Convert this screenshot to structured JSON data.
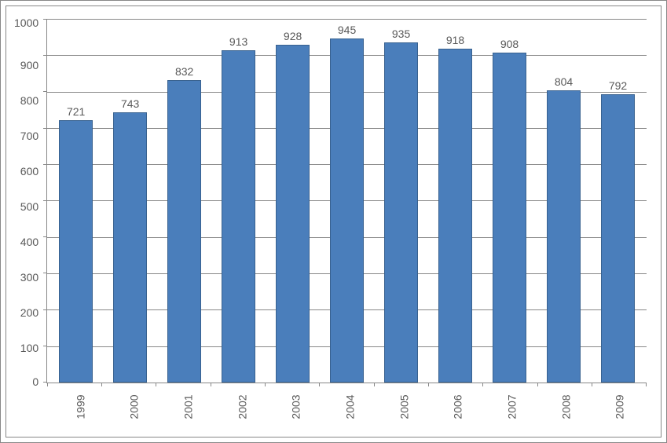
{
  "chart": {
    "type": "bar",
    "categories": [
      "1999",
      "2000",
      "2001",
      "2002",
      "2003",
      "2004",
      "2005",
      "2006",
      "2007",
      "2008",
      "2009"
    ],
    "values": [
      721,
      743,
      832,
      913,
      928,
      945,
      935,
      918,
      908,
      804,
      792
    ],
    "ylim": [
      0,
      1000
    ],
    "ytick_step": 100,
    "yticks": [
      1000,
      900,
      800,
      700,
      600,
      500,
      400,
      300,
      200,
      100,
      0
    ],
    "bar_color": "#4a7ebb",
    "bar_border_color": "#38618f",
    "background_color": "#ffffff",
    "grid_color": "#888888",
    "border_color": "#888888",
    "text_color": "#595959",
    "label_fontsize": 14,
    "value_label_fontsize": 14,
    "bar_width": 0.62,
    "x_label_rotation": -90
  }
}
